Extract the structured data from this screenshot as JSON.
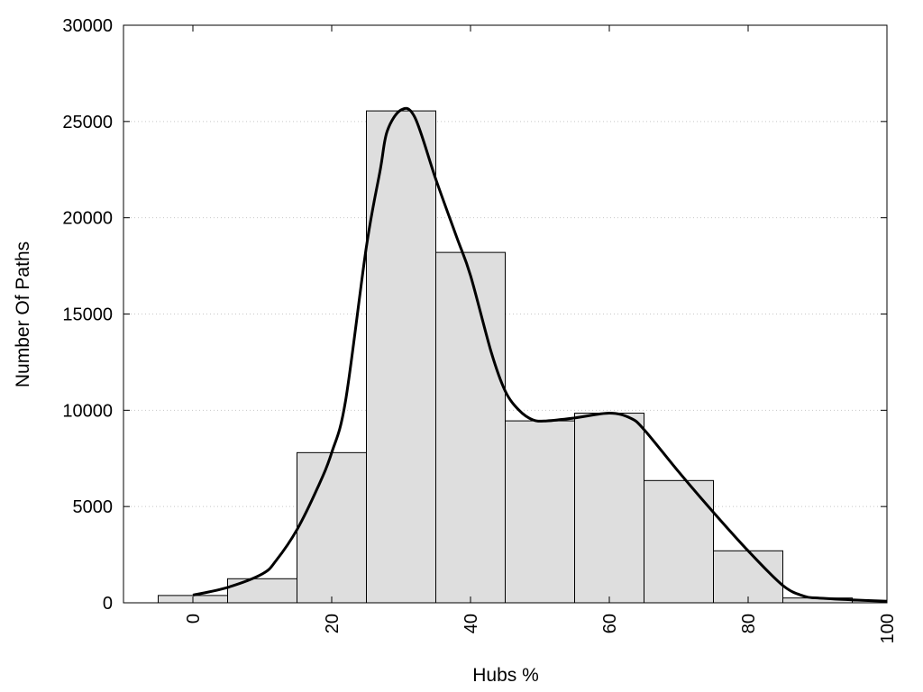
{
  "chart_data": {
    "type": "bar",
    "title": "",
    "xlabel": "Hubs %",
    "ylabel": "Number Of Paths",
    "xlim": [
      -10,
      100
    ],
    "ylim": [
      0,
      30000
    ],
    "grid": "horizontal dotted",
    "bar_color": "#dedede",
    "line_color": "#000000",
    "bin_width": 10,
    "bins": [
      {
        "center": 0,
        "value": 380
      },
      {
        "center": 10,
        "value": 1250
      },
      {
        "center": 20,
        "value": 7800
      },
      {
        "center": 30,
        "value": 25550
      },
      {
        "center": 40,
        "value": 18200
      },
      {
        "center": 50,
        "value": 9450
      },
      {
        "center": 60,
        "value": 9850
      },
      {
        "center": 70,
        "value": 6350
      },
      {
        "center": 80,
        "value": 2700
      },
      {
        "center": 90,
        "value": 250
      },
      {
        "center": 100,
        "value": 100
      }
    ],
    "density_curve": {
      "x": [
        0,
        5,
        10,
        12,
        15,
        18,
        20,
        22,
        25,
        27,
        28,
        30,
        32,
        35,
        38,
        40,
        43,
        45,
        47,
        49,
        51,
        55,
        60,
        63,
        65,
        70,
        75,
        80,
        85,
        88,
        90,
        95,
        100
      ],
      "y": [
        400,
        800,
        1500,
        2200,
        3800,
        6000,
        7800,
        10500,
        18500,
        22500,
        24500,
        25600,
        25200,
        22000,
        19000,
        17000,
        13000,
        11000,
        10000,
        9500,
        9450,
        9600,
        9850,
        9600,
        9000,
        6800,
        4700,
        2700,
        900,
        350,
        250,
        150,
        80
      ]
    },
    "x_ticks": [
      0,
      20,
      40,
      60,
      80,
      100
    ],
    "x_tick_labels": [
      "0",
      "20",
      "40",
      "60",
      "80",
      "100"
    ],
    "y_ticks": [
      0,
      5000,
      10000,
      15000,
      20000,
      25000,
      30000
    ],
    "y_tick_labels": [
      "0",
      "5000",
      "10000",
      "15000",
      "20000",
      "25000",
      "30000"
    ]
  }
}
